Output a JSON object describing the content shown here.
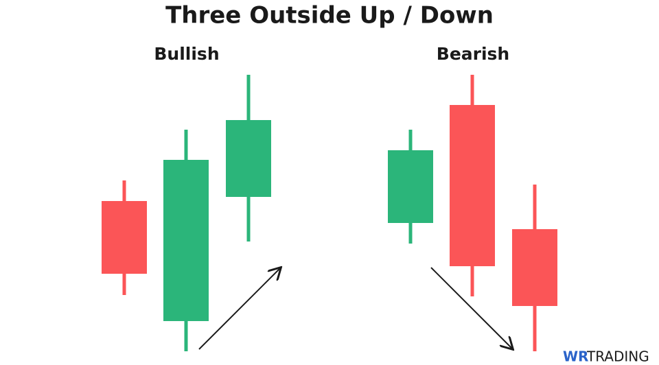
{
  "title": "Three Outside Up / Down",
  "panels": [
    {
      "label": "Bullish"
    },
    {
      "label": "Bearish"
    }
  ],
  "logo": {
    "mark": "WR",
    "text": "TRADING"
  }
}
